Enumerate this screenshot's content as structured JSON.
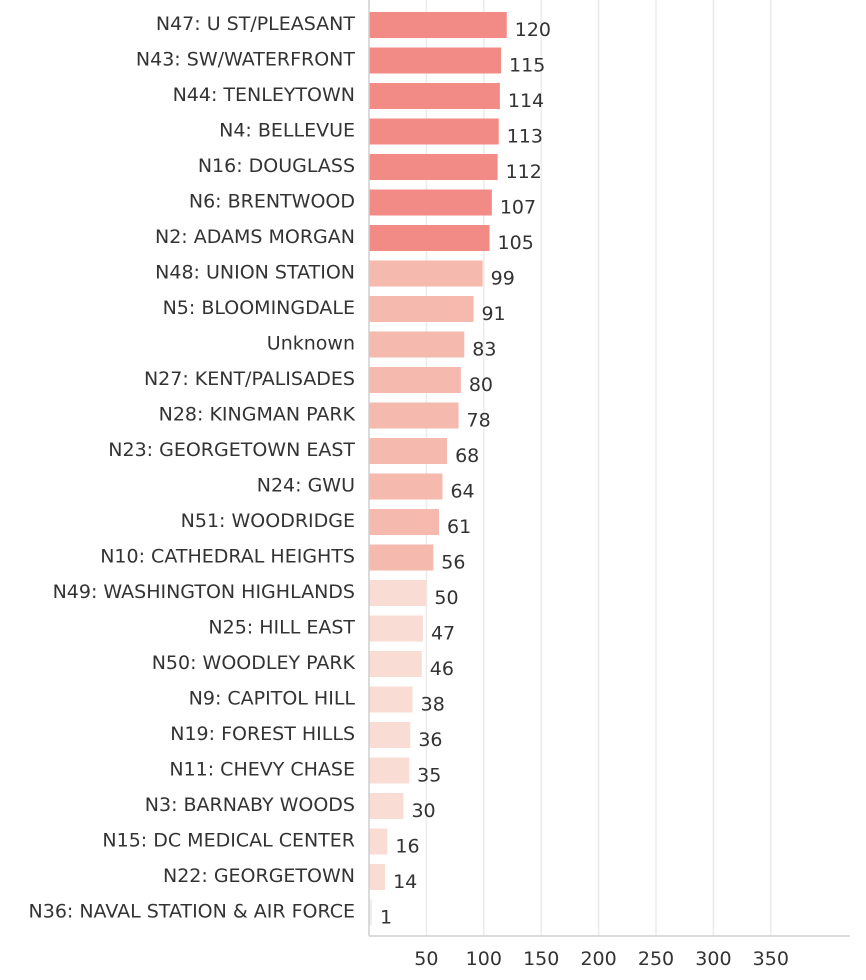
{
  "chart_data": {
    "type": "bar",
    "orientation": "horizontal",
    "title": "",
    "xlabel": "",
    "ylabel": "",
    "xlim": [
      0,
      420
    ],
    "grid": true,
    "legend": "none",
    "x_ticks": [
      50,
      100,
      150,
      200,
      250,
      300,
      350
    ],
    "categories": [
      "N47: U ST/PLEASANT",
      "N43: SW/WATERFRONT",
      "N44: TENLEYTOWN",
      "N4: BELLEVUE",
      "N16: DOUGLASS",
      "N6: BRENTWOOD",
      "N2: ADAMS MORGAN",
      "N48: UNION STATION",
      "N5: BLOOMINGDALE",
      "Unknown",
      "N27: KENT/PALISADES",
      "N28: KINGMAN PARK",
      "N23: GEORGETOWN EAST",
      "N24: GWU",
      "N51: WOODRIDGE",
      "N10: CATHEDRAL HEIGHTS",
      "N49: WASHINGTON HIGHLANDS",
      "N25: HILL EAST",
      "N50: WOODLEY PARK",
      "N9: CAPITOL HILL",
      "N19: FOREST HILLS",
      "N11: CHEVY CHASE",
      "N3: BARNABY WOODS",
      "N15: DC MEDICAL CENTER",
      "N22: GEORGETOWN",
      "N36: NAVAL STATION & AIR FORCE"
    ],
    "values": [
      120,
      115,
      114,
      113,
      112,
      107,
      105,
      99,
      91,
      83,
      80,
      78,
      68,
      64,
      61,
      56,
      50,
      47,
      46,
      38,
      36,
      35,
      30,
      16,
      14,
      1
    ],
    "color_bins": [
      {
        "min": 100,
        "color": "#f28b85"
      },
      {
        "min": 51,
        "color": "#f6b9ae"
      },
      {
        "min": 2,
        "color": "#f9ddd4"
      },
      {
        "min": 0,
        "color": "#eeeeee"
      }
    ]
  }
}
